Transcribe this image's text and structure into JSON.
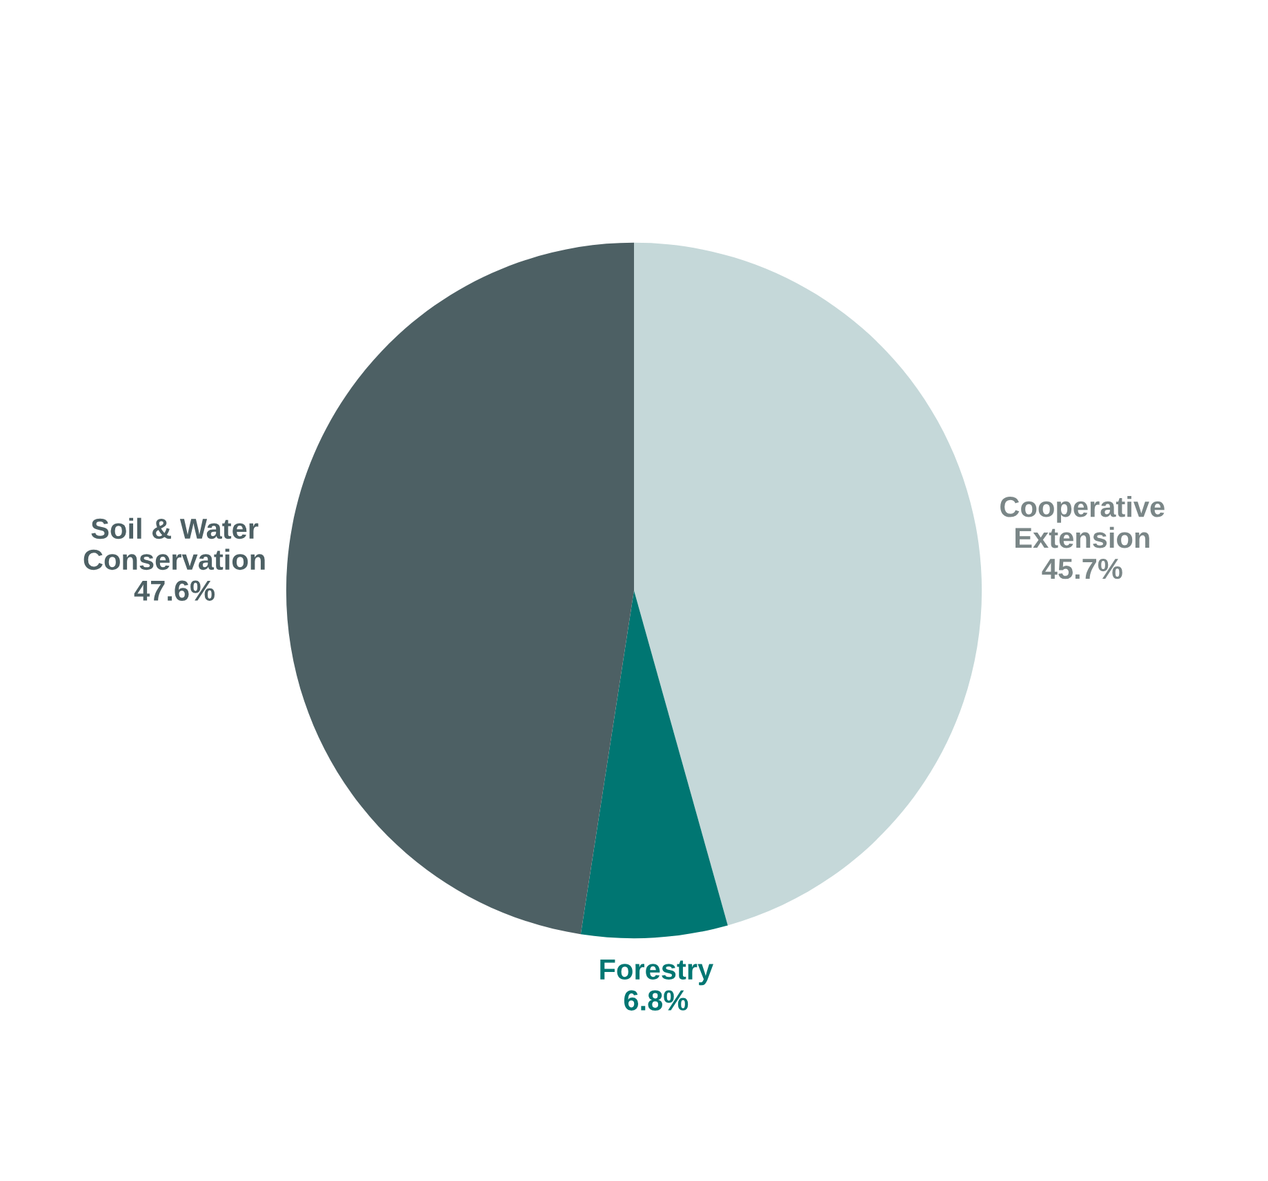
{
  "chart_data": {
    "type": "pie",
    "categories": [
      "Cooperative Extension",
      "Forestry",
      "Soil & Water Conservation"
    ],
    "values": [
      45.7,
      6.8,
      47.6
    ],
    "colors": [
      "#c5d8d9",
      "#007672",
      "#4d6064"
    ],
    "value_labels": [
      "45.7%",
      "6.8%",
      "47.6%"
    ]
  }
}
